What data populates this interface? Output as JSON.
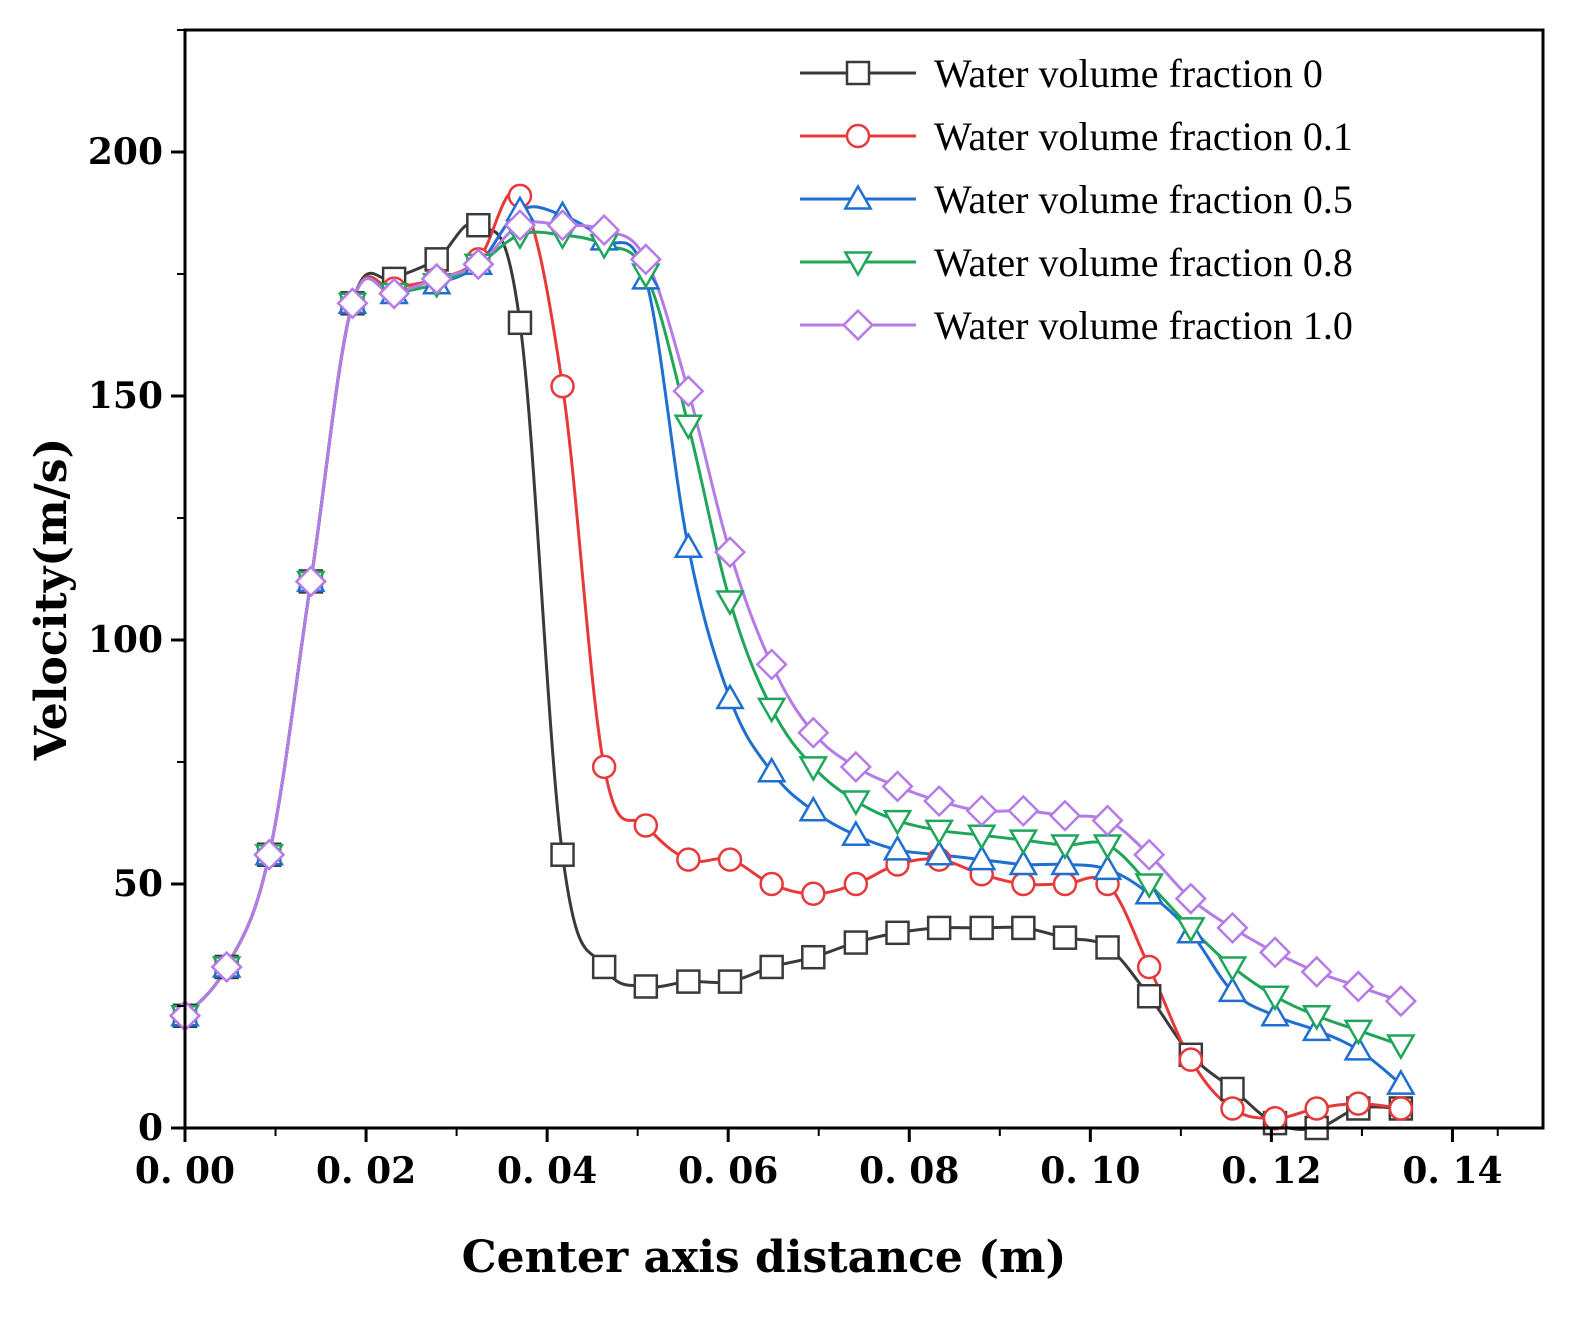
{
  "chart_data": {
    "type": "line",
    "title": "",
    "xlabel": "Center axis distance (m)",
    "ylabel": "Velocity(m/s)",
    "xlim": [
      0,
      0.15
    ],
    "ylim": [
      0,
      225
    ],
    "x_ticks": [
      0,
      0.02,
      0.04,
      0.06,
      0.08,
      0.1,
      0.12,
      0.14
    ],
    "x_tick_labels": [
      "0. 00",
      "0. 02",
      "0. 04",
      "0. 06",
      "0. 08",
      "0. 10",
      "0. 12",
      "0. 14"
    ],
    "y_ticks": [
      0,
      50,
      100,
      150,
      200
    ],
    "y_tick_labels": [
      "0",
      "50",
      "100",
      "150",
      "200"
    ],
    "legend_position": "top-right",
    "x": [
      0.0,
      0.0046,
      0.0093,
      0.0139,
      0.0185,
      0.0231,
      0.0278,
      0.0324,
      0.037,
      0.0417,
      0.0463,
      0.0509,
      0.0556,
      0.0602,
      0.0648,
      0.0694,
      0.0741,
      0.0787,
      0.0833,
      0.088,
      0.0926,
      0.0972,
      0.1019,
      0.1065,
      0.1111,
      0.1157,
      0.1204,
      0.125,
      0.1296,
      0.1343
    ],
    "series": [
      {
        "name": "Water volume fraction 0",
        "color": "#3a3a3a",
        "marker": "square",
        "values": [
          23,
          33,
          56,
          112,
          169,
          174,
          178,
          185,
          165,
          56,
          33,
          29,
          30,
          30,
          33,
          35,
          38,
          40,
          41,
          41,
          41,
          39,
          37,
          27,
          15,
          8,
          1,
          0,
          4,
          4
        ]
      },
      {
        "name": "Water volume fraction 0.1",
        "color": "#e8393a",
        "marker": "circle",
        "values": [
          23,
          33,
          56,
          112,
          169,
          172,
          174,
          178,
          191,
          152,
          74,
          62,
          55,
          55,
          50,
          48,
          50,
          54,
          55,
          52,
          50,
          50,
          50,
          33,
          14,
          4,
          2,
          4,
          5,
          4
        ]
      },
      {
        "name": "Water volume fraction 0.5",
        "color": "#1f6fd1",
        "marker": "triangle-up",
        "values": [
          23,
          33,
          56,
          112,
          169,
          171,
          173,
          177,
          188,
          187,
          182,
          174,
          119,
          88,
          73,
          65,
          60,
          57,
          56,
          55,
          54,
          54,
          53,
          48,
          40,
          28,
          23,
          20,
          16,
          9
        ]
      },
      {
        "name": "Water volume fraction 0.8",
        "color": "#1fa65a",
        "marker": "triangle-down",
        "values": [
          23,
          33,
          56,
          112,
          169,
          171,
          173,
          177,
          183,
          183,
          181,
          175,
          144,
          108,
          86,
          74,
          67,
          63,
          61,
          60,
          59,
          58,
          58,
          50,
          41,
          33,
          27,
          23,
          20,
          17
        ]
      },
      {
        "name": "Water volume fraction 1.0",
        "color": "#b57be6",
        "marker": "diamond",
        "values": [
          23,
          33,
          56,
          112,
          169,
          171,
          174,
          177,
          185,
          185,
          184,
          178,
          151,
          118,
          95,
          81,
          74,
          70,
          67,
          65,
          65,
          64,
          63,
          56,
          47,
          41,
          36,
          32,
          29,
          26
        ]
      }
    ]
  }
}
